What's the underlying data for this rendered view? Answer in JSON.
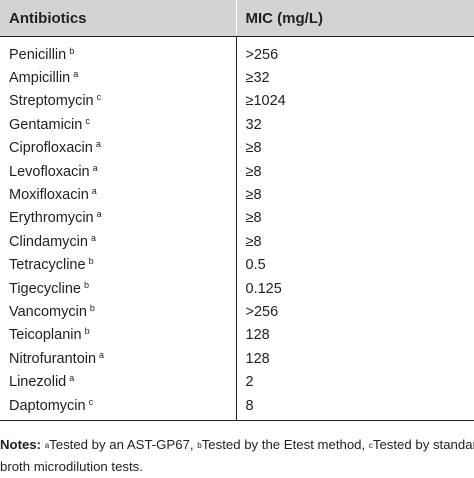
{
  "table": {
    "headers": [
      "Antibiotics",
      "MIC (mg/L)"
    ],
    "rows": [
      {
        "name": "Penicillin",
        "note": "b",
        "mic": ">256"
      },
      {
        "name": "Ampicillin",
        "note": "a",
        "mic": "≥32"
      },
      {
        "name": "Streptomycin",
        "note": "c",
        "mic": "≥1024"
      },
      {
        "name": "Gentamicin",
        "note": "c",
        "mic": "32"
      },
      {
        "name": "Ciprofloxacin",
        "note": "a",
        "mic": "≥8"
      },
      {
        "name": "Levofloxacin",
        "note": "a",
        "mic": "≥8"
      },
      {
        "name": "Moxifloxacin",
        "note": "a",
        "mic": "≥8"
      },
      {
        "name": "Erythromycin",
        "note": "a",
        "mic": "≥8"
      },
      {
        "name": "Clindamycin",
        "note": "a",
        "mic": "≥8"
      },
      {
        "name": "Tetracycline",
        "note": "b",
        "mic": "0.5"
      },
      {
        "name": "Tigecycline",
        "note": "b",
        "mic": "0.125"
      },
      {
        "name": "Vancomycin",
        "note": "b",
        "mic": ">256"
      },
      {
        "name": "Teicoplanin",
        "note": "b",
        "mic": "128"
      },
      {
        "name": "Nitrofurantoin",
        "note": "a",
        "mic": "128"
      },
      {
        "name": "Linezolid",
        "note": "a",
        "mic": "2"
      },
      {
        "name": "Daptomycin",
        "note": "c",
        "mic": "8"
      }
    ]
  },
  "notes": {
    "label": "Notes:",
    "items": [
      {
        "mark": "a",
        "text": "Tested by an AST-GP67,"
      },
      {
        "mark": "b",
        "text": "Tested by the Etest method,"
      },
      {
        "mark": "c",
        "text": "Tested by standard"
      }
    ],
    "line2": "broth microdilution tests."
  },
  "colors": {
    "header_bg": "#d3d3d4",
    "text": "#231f20"
  }
}
